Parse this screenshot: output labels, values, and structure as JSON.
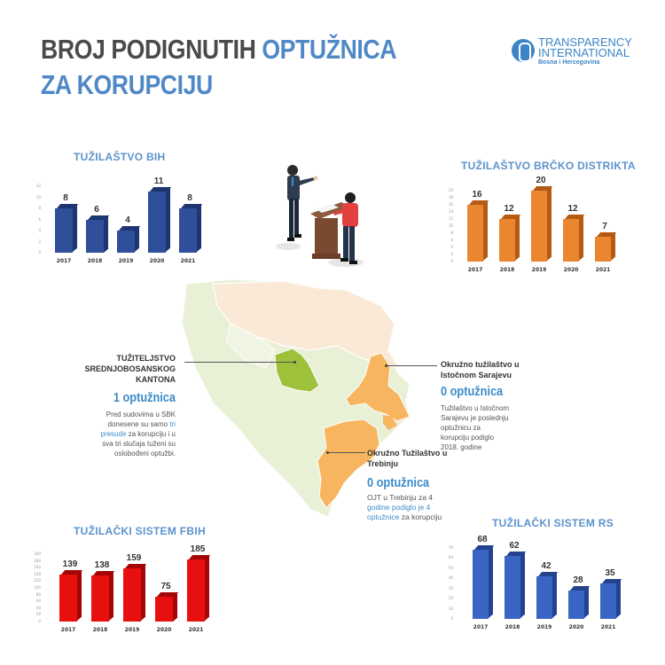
{
  "header": {
    "title_part1": "BROJ PODIGNUTIH ",
    "title_highlight": "OPTUŽNICA",
    "title_line2": "ZA KORUPCIJU",
    "logo_line1": "TRANSPARENCY",
    "logo_line2": "INTERNATIONAL",
    "logo_line3": "Bosna i Hercegovina"
  },
  "colors": {
    "title_dark": "#4a4a4a",
    "title_blue": "#4f88c6",
    "bih_bar": "#2f4f9a",
    "brcko_bar": "#ea8630",
    "fbih_bar": "#e8100f",
    "rs_bar": "#3a65c4",
    "map_green_highlight": "#9dc13b",
    "map_orange": "#f7b55f",
    "map_light_green": "#e8f0d6",
    "map_light_peach": "#fbe9d8"
  },
  "callouts": {
    "sbk": {
      "head_l1": "TUŽITELJSTVO",
      "head_l2": "SREDNJOBOSANSKOG",
      "head_l3": "KANTONA",
      "count": "1 optužnica",
      "body_1": "Pred sudovima u SBK",
      "body_2": "donesene su samo ",
      "body_link": "tri presude",
      "body_3": " za korupciju i u",
      "body_4": "sva tri slučaja tuženi su",
      "body_5": "oslobođeni optužbi."
    },
    "istocno_sarajevo": {
      "head_l1": "Okružno tužilaštvo u",
      "head_l2": "Istočnom Sarajevu",
      "count": "0 optužnica",
      "body_1": "Tužilaštvo u Istočnom",
      "body_2": "Sarajevu je poslednju",
      "body_3": "optužnicu za",
      "body_4": "korupciju podiglo",
      "body_5": "2018. godine"
    },
    "trebinje": {
      "head_l1": "Okružno Tužilaštvo u",
      "head_l2": "Trebinju",
      "count": "0 optužnica",
      "body_1": "OJT u Trebinju za 4",
      "body_link_1": "godine podiglo je 4",
      "body_link_2": "optužnice",
      "body_3": " za korupciju"
    }
  },
  "chart_data": [
    {
      "type": "bar",
      "title": "TUŽILAŠTVO BIH",
      "categories": [
        "2017",
        "2018",
        "2019",
        "2020",
        "2021"
      ],
      "values": [
        8,
        6,
        4,
        11,
        8
      ],
      "labels": [
        "8",
        "6",
        "4",
        "11",
        "8"
      ],
      "yticks": [
        "0",
        "2",
        "4",
        "6",
        "8",
        "10",
        "12"
      ],
      "ylim": [
        0,
        12
      ],
      "xlabel": "",
      "ylabel": "",
      "color": "#2f4f9a",
      "side": "#1d3570"
    },
    {
      "type": "bar",
      "title": "TUŽILAŠTVO BRČKO DISTRIKTA",
      "categories": [
        "2017",
        "2018",
        "2019",
        "2020",
        "2021"
      ],
      "values": [
        16,
        12,
        20,
        12,
        7
      ],
      "labels": [
        "16",
        "12",
        "20",
        "12",
        "7"
      ],
      "yticks": [
        "0",
        "2",
        "4",
        "6",
        "8",
        "10",
        "12",
        "14",
        "16",
        "18",
        "20"
      ],
      "ylim": [
        0,
        20
      ],
      "xlabel": "",
      "ylabel": "",
      "color": "#ea8630",
      "side": "#b45a14"
    },
    {
      "type": "bar",
      "title": "TUŽILAČKI SISTEM FBIH",
      "categories": [
        "2017",
        "2018",
        "2019",
        "2020",
        "2021"
      ],
      "values": [
        139,
        138,
        159,
        75,
        185
      ],
      "labels": [
        "139",
        "138",
        "159",
        "75",
        "185"
      ],
      "yticks": [
        "0",
        "20",
        "40",
        "60",
        "80",
        "100",
        "120",
        "140",
        "160",
        "180",
        "200"
      ],
      "ylim": [
        0,
        200
      ],
      "xlabel": "",
      "ylabel": "",
      "color": "#e8100f",
      "side": "#a30606"
    },
    {
      "type": "bar",
      "title": "TUŽILAČKI SISTEM RS",
      "categories": [
        "2017",
        "2018",
        "2019",
        "2020",
        "2021"
      ],
      "values": [
        68,
        62,
        42,
        28,
        35
      ],
      "labels": [
        "68",
        "62",
        "42",
        "28",
        "35"
      ],
      "yticks": [
        "0",
        "10",
        "20",
        "30",
        "40",
        "50",
        "60",
        "70"
      ],
      "ylim": [
        0,
        70
      ],
      "xlabel": "",
      "ylabel": "",
      "color": "#3a65c4",
      "side": "#24438f"
    }
  ]
}
